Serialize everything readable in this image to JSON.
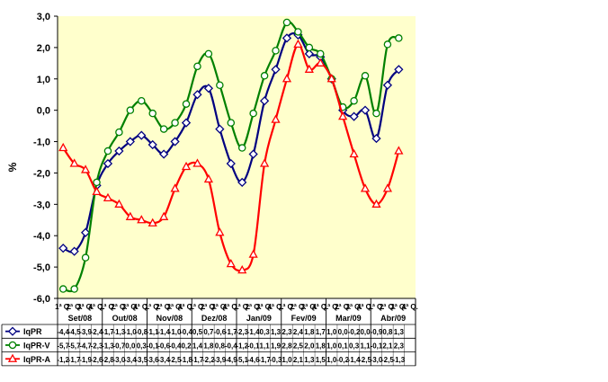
{
  "chart_data": {
    "type": "line",
    "ylabel": "%",
    "ylim": [
      -6.0,
      3.0
    ],
    "ytick_labels": [
      "3,0",
      "2,0",
      "1,0",
      "0,0",
      "-1,0",
      "-2,0",
      "-3,0",
      "-4,0",
      "-5,0",
      "-6,0"
    ],
    "grid": false,
    "legend_placement": "bottom-left (data table)",
    "colors": {
      "plot_background": "#FFFFCC",
      "chart_background": "#FFFFFF",
      "axis": "#000000"
    },
    "x_labels": [
      "1ª Q.",
      "2ª Q.",
      "3ª Q.",
      "4ª Q.",
      "1ª Q.",
      "2ª Q.",
      "3ª Q.",
      "4ª Q.",
      "1ª Q.",
      "2ª Q.",
      "3ª Q.",
      "4ª Q.",
      "1ª Q.",
      "2ª Q.",
      "3ª Q.",
      "4ª Q.",
      "1ª Q.",
      "2ª Q.",
      "3ª Q.",
      "4ª Q.",
      "1ª Q.",
      "2ª Q.",
      "3ª Q.",
      "4ª Q.",
      "1ª Q.",
      "2ª Q.",
      "3ª Q.",
      "4ª Q.",
      "1ª Q.",
      "2ª Q.",
      "3ª Q.",
      "4ª Q."
    ],
    "months": [
      "Set/08",
      "Out/08",
      "Nov/08",
      "Dez/08",
      "Jan/09",
      "Fev/09",
      "Mar/09",
      "Abr/09"
    ],
    "series": [
      {
        "name": "IqPR",
        "color": "#000080",
        "marker": "diamond",
        "values": [
          -4.4,
          -4.5,
          -3.9,
          -2.4,
          -1.7,
          -1.3,
          -1.0,
          -0.8,
          -1.1,
          -1.4,
          -1.0,
          -0.4,
          0.5,
          0.7,
          -0.6,
          -1.7,
          -2.3,
          -1.4,
          0.3,
          1.3,
          2.3,
          2.4,
          1.8,
          1.7,
          1.0,
          0.0,
          -0.2,
          0.0,
          -0.9,
          0.8,
          1.3
        ],
        "labels": [
          "-4,4",
          "-4,5",
          "-3,9",
          "-2,4",
          "-1,7",
          "-1,3",
          "-1,0",
          "-0,8",
          "-1,1",
          "-1,4",
          "-1,0",
          "-0,4",
          "0,5",
          "0,7",
          "-0,6",
          "-1,7",
          "-2,3",
          "-1,4",
          "0,3",
          "1,3",
          "2,3",
          "2,4",
          "1,8",
          "1,7",
          "1,0",
          "0,0",
          "-0,2",
          "0,0",
          "-0,9",
          "0,8",
          "1,3"
        ]
      },
      {
        "name": "IqPR-V",
        "color": "#008000",
        "marker": "circle",
        "values": [
          -5.7,
          -5.7,
          -4.7,
          -2.3,
          -1.3,
          -0.7,
          0.0,
          0.3,
          -0.1,
          -0.6,
          -0.4,
          0.2,
          1.4,
          1.8,
          0.8,
          -0.4,
          -1.2,
          -0.1,
          1.1,
          1.9,
          2.8,
          2.5,
          2.0,
          1.8,
          1.0,
          0.1,
          0.3,
          1.1,
          -0.1,
          2.1,
          2.3
        ],
        "labels": [
          "-5,7",
          "-5,7",
          "-4,7",
          "-2,3",
          "-1,3",
          "-0,7",
          "0,0",
          "0,3",
          "-0,1",
          "-0,6",
          "-0,4",
          "0,2",
          "1,4",
          "1,8",
          "0,8",
          "-0,4",
          "-1,2",
          "-0,1",
          "1,1",
          "1,9",
          "2,8",
          "2,5",
          "2,0",
          "1,8",
          "1,0",
          "0,1",
          "0,3",
          "1,1",
          "-0,1",
          "2,1",
          "2,3"
        ]
      },
      {
        "name": "IqPR-A",
        "color": "#FF0000",
        "marker": "triangle",
        "values": [
          -1.2,
          -1.7,
          -1.9,
          -2.6,
          -2.8,
          -3.0,
          -3.4,
          -3.5,
          -3.6,
          -3.4,
          -2.5,
          -1.8,
          -1.7,
          -2.2,
          -3.9,
          -4.9,
          -5.1,
          -4.6,
          -1.7,
          -0.3,
          1.0,
          2.1,
          1.3,
          1.5,
          1.0,
          -0.2,
          -1.4,
          -2.5,
          -3.0,
          -2.5,
          -1.3
        ],
        "labels": [
          "-1,2",
          "-1,7",
          "-1,9",
          "-2,6",
          "-2,8",
          "-3,0",
          "-3,4",
          "-3,5",
          "-3,6",
          "-3,4",
          "-2,5",
          "-1,8",
          "-1,7",
          "-2,2",
          "-3,9",
          "-4,9",
          "-5,1",
          "-4,6",
          "-1,7",
          "-0,3",
          "1,0",
          "2,1",
          "1,3",
          "1,5",
          "1,0",
          "-0,2",
          "-1,4",
          "-2,5",
          "-3,0",
          "-2,5",
          "-1,3"
        ]
      }
    ]
  }
}
